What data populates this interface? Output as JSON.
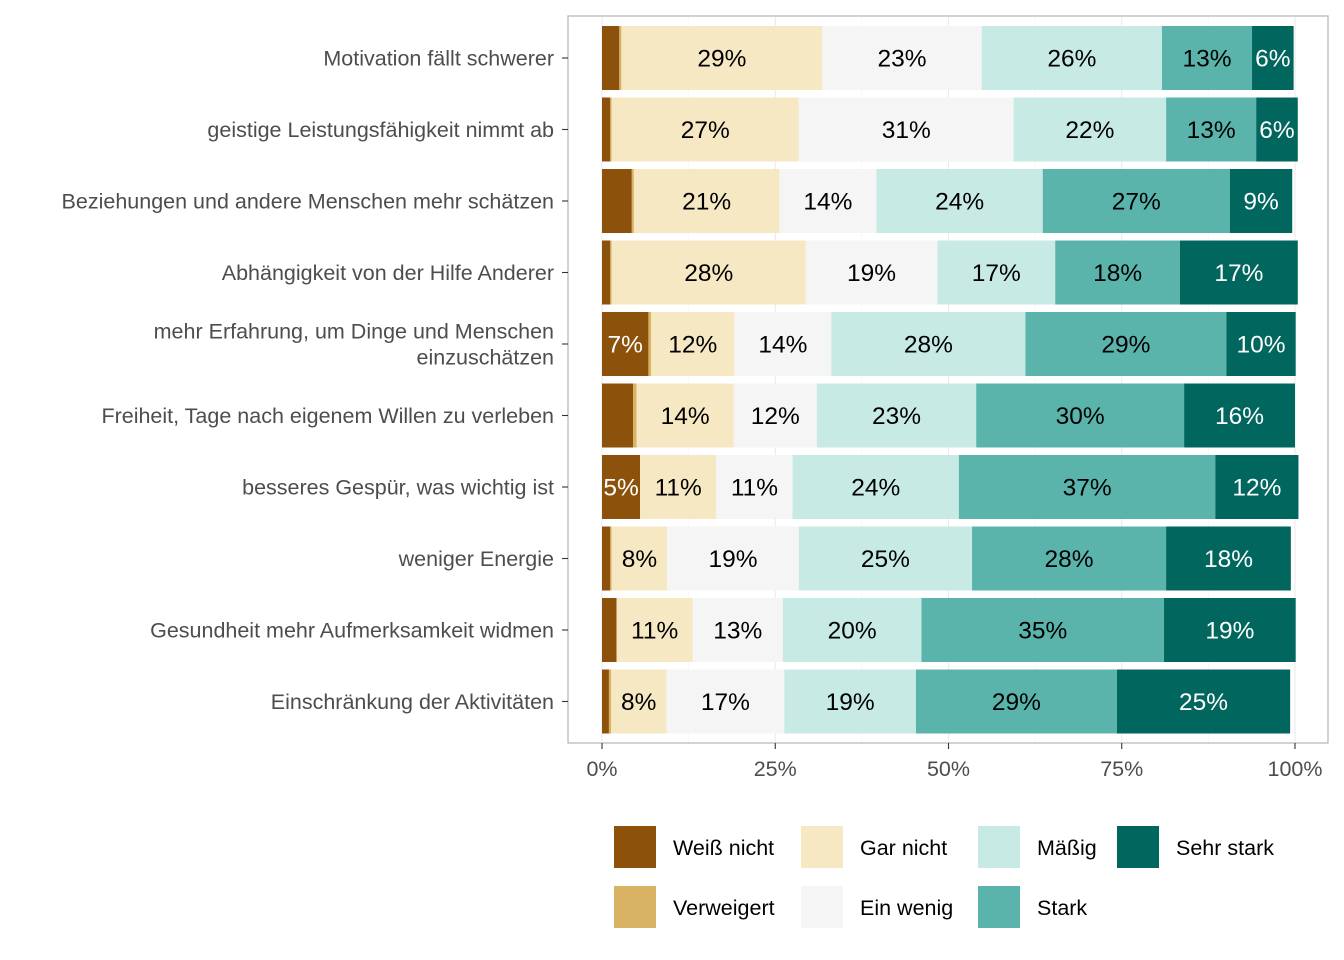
{
  "chart_data": {
    "type": "bar",
    "orientation": "horizontal",
    "stacked": true,
    "xlim": [
      0,
      1
    ],
    "x_ticks": [
      "0%",
      "25%",
      "50%",
      "75%",
      "100%"
    ],
    "grid": true,
    "legend_position": "bottom",
    "categories": [
      "Motivation fällt schwerer",
      "geistige Leistungsfähigkeit nimmt ab",
      "Beziehungen und andere Menschen mehr schätzen",
      "Abhängigkeit von der Hilfe Anderer",
      "mehr Erfahrung, um Dinge und Menschen einzuschätzen",
      "Freiheit, Tage nach eigenem Willen zu verleben",
      "besseres Gespür, was wichtig ist",
      "weniger Energie",
      "Gesundheit mehr Aufmerksamkeit widmen",
      "Einschränkung der Aktivitäten"
    ],
    "category_lines": [
      [
        "Motivation fällt schwerer"
      ],
      [
        "geistige Leistungsfähigkeit nimmt ab"
      ],
      [
        "Beziehungen und andere Menschen mehr schätzen"
      ],
      [
        "Abhängigkeit von der Hilfe Anderer"
      ],
      [
        "mehr Erfahrung, um Dinge und Menschen",
        "einzuschätzen"
      ],
      [
        "Freiheit, Tage nach eigenem Willen zu verleben"
      ],
      [
        "besseres Gespür, was wichtig ist"
      ],
      [
        "weniger Energie"
      ],
      [
        "Gesundheit mehr Aufmerksamkeit widmen"
      ],
      [
        "Einschränkung der Aktivitäten"
      ]
    ],
    "series": [
      {
        "name": "Weiß nicht",
        "color": "#8C510A",
        "label_color": "#ffffff",
        "values": [
          0.025,
          0.012,
          0.043,
          0.012,
          0.067,
          0.045,
          0.055,
          0.012,
          0.021,
          0.01
        ]
      },
      {
        "name": "Verweigert",
        "color": "#D8B365",
        "label_color": "#000000",
        "values": [
          0.003,
          0.002,
          0.003,
          0.002,
          0.004,
          0.005,
          0.0,
          0.002,
          0.0,
          0.003
        ]
      },
      {
        "name": "Gar nicht",
        "color": "#F6E8C3",
        "label_color": "#000000",
        "values": [
          0.29,
          0.27,
          0.21,
          0.28,
          0.12,
          0.14,
          0.11,
          0.08,
          0.11,
          0.08
        ]
      },
      {
        "name": "Ein wenig",
        "color": "#F5F5F5",
        "label_color": "#000000",
        "values": [
          0.23,
          0.31,
          0.14,
          0.19,
          0.14,
          0.12,
          0.11,
          0.19,
          0.13,
          0.17
        ]
      },
      {
        "name": "Mäßig",
        "color": "#C7EAE5",
        "label_color": "#000000",
        "values": [
          0.26,
          0.22,
          0.24,
          0.17,
          0.28,
          0.23,
          0.24,
          0.25,
          0.2,
          0.19
        ]
      },
      {
        "name": "Stark",
        "color": "#5AB4AC",
        "label_color": "#000000",
        "values": [
          0.13,
          0.13,
          0.27,
          0.18,
          0.29,
          0.3,
          0.37,
          0.28,
          0.35,
          0.29
        ]
      },
      {
        "name": "Sehr stark",
        "color": "#01665E",
        "label_color": "#ffffff",
        "values": [
          0.06,
          0.06,
          0.09,
          0.17,
          0.1,
          0.16,
          0.12,
          0.18,
          0.19,
          0.25
        ]
      }
    ],
    "data_labels": [
      [
        null,
        null,
        "29%",
        "23%",
        "26%",
        "13%",
        "6%"
      ],
      [
        null,
        null,
        "27%",
        "31%",
        "22%",
        "13%",
        "6%"
      ],
      [
        null,
        null,
        "21%",
        "14%",
        "24%",
        "27%",
        "9%"
      ],
      [
        null,
        null,
        "28%",
        "19%",
        "17%",
        "18%",
        "17%"
      ],
      [
        "7%",
        null,
        "12%",
        "14%",
        "28%",
        "29%",
        "10%"
      ],
      [
        null,
        null,
        "14%",
        "12%",
        "23%",
        "30%",
        "16%"
      ],
      [
        "5%",
        null,
        "11%",
        "11%",
        "24%",
        "37%",
        "12%"
      ],
      [
        null,
        null,
        "8%",
        "19%",
        "25%",
        "28%",
        "18%"
      ],
      [
        null,
        null,
        "11%",
        "13%",
        "20%",
        "35%",
        "19%"
      ],
      [
        null,
        null,
        "8%",
        "17%",
        "19%",
        "29%",
        "25%"
      ]
    ],
    "legend": {
      "columns": [
        [
          "Weiß nicht",
          "Verweigert"
        ],
        [
          "Gar nicht",
          "Ein wenig"
        ],
        [
          "Mäßig",
          "Stark"
        ],
        [
          "Sehr stark"
        ]
      ]
    }
  }
}
